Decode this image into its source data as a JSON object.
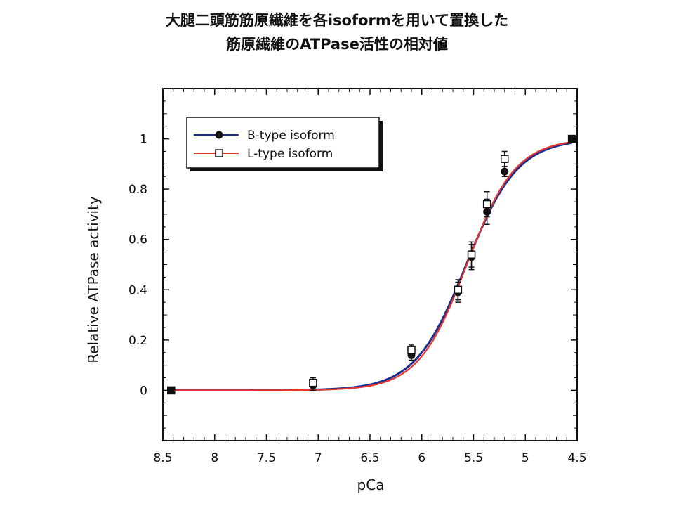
{
  "title": {
    "line1": "大腿二頭筋筋原繊維を各isoformを用いて置換した",
    "line2": "筋原繊維のATPase活性の相対値"
  },
  "chart_data": {
    "type": "scatter",
    "title": "大腿二頭筋筋原繊維を各isoformを用いて置換した 筋原繊維のATPase活性の相対値",
    "xlabel": "pCa",
    "ylabel": "Relative ATPase activity",
    "xlim": [
      8.5,
      4.5
    ],
    "ylim": [
      -0.2,
      1.2
    ],
    "x_reversed": true,
    "x_ticks": [
      "8.5",
      "8",
      "7.5",
      "7",
      "6.5",
      "6",
      "5.5",
      "5",
      "4.5"
    ],
    "y_ticks": [
      "0",
      "0.2",
      "0.4",
      "0.6",
      "0.8",
      "1"
    ],
    "legend_position": "top-left",
    "grid": false,
    "series": [
      {
        "name": "B-type isoform",
        "marker": "filled-circle",
        "line_color": "#1c2e8c",
        "points": [
          {
            "x": 8.42,
            "y": 0.0,
            "err": 0.0
          },
          {
            "x": 7.05,
            "y": 0.02,
            "err": 0.02
          },
          {
            "x": 6.1,
            "y": 0.14,
            "err": 0.02
          },
          {
            "x": 5.65,
            "y": 0.39,
            "err": 0.04
          },
          {
            "x": 5.52,
            "y": 0.53,
            "err": 0.05
          },
          {
            "x": 5.37,
            "y": 0.71,
            "err": 0.05
          },
          {
            "x": 5.2,
            "y": 0.87,
            "err": 0.02
          },
          {
            "x": 4.55,
            "y": 1.0,
            "err": 0.0
          }
        ],
        "fit": {
          "pCa50": 5.57,
          "hill": 1.75
        }
      },
      {
        "name": "L-type isoform",
        "marker": "open-square",
        "line_color": "#e8362f",
        "points": [
          {
            "x": 8.42,
            "y": 0.0,
            "err": 0.0
          },
          {
            "x": 7.05,
            "y": 0.03,
            "err": 0.02
          },
          {
            "x": 6.1,
            "y": 0.16,
            "err": 0.02
          },
          {
            "x": 5.65,
            "y": 0.4,
            "err": 0.04
          },
          {
            "x": 5.52,
            "y": 0.54,
            "err": 0.05
          },
          {
            "x": 5.37,
            "y": 0.74,
            "err": 0.05
          },
          {
            "x": 5.2,
            "y": 0.92,
            "err": 0.03
          },
          {
            "x": 4.55,
            "y": 1.0,
            "err": 0.0
          }
        ],
        "fit": {
          "pCa50": 5.565,
          "hill": 1.85
        }
      }
    ]
  }
}
